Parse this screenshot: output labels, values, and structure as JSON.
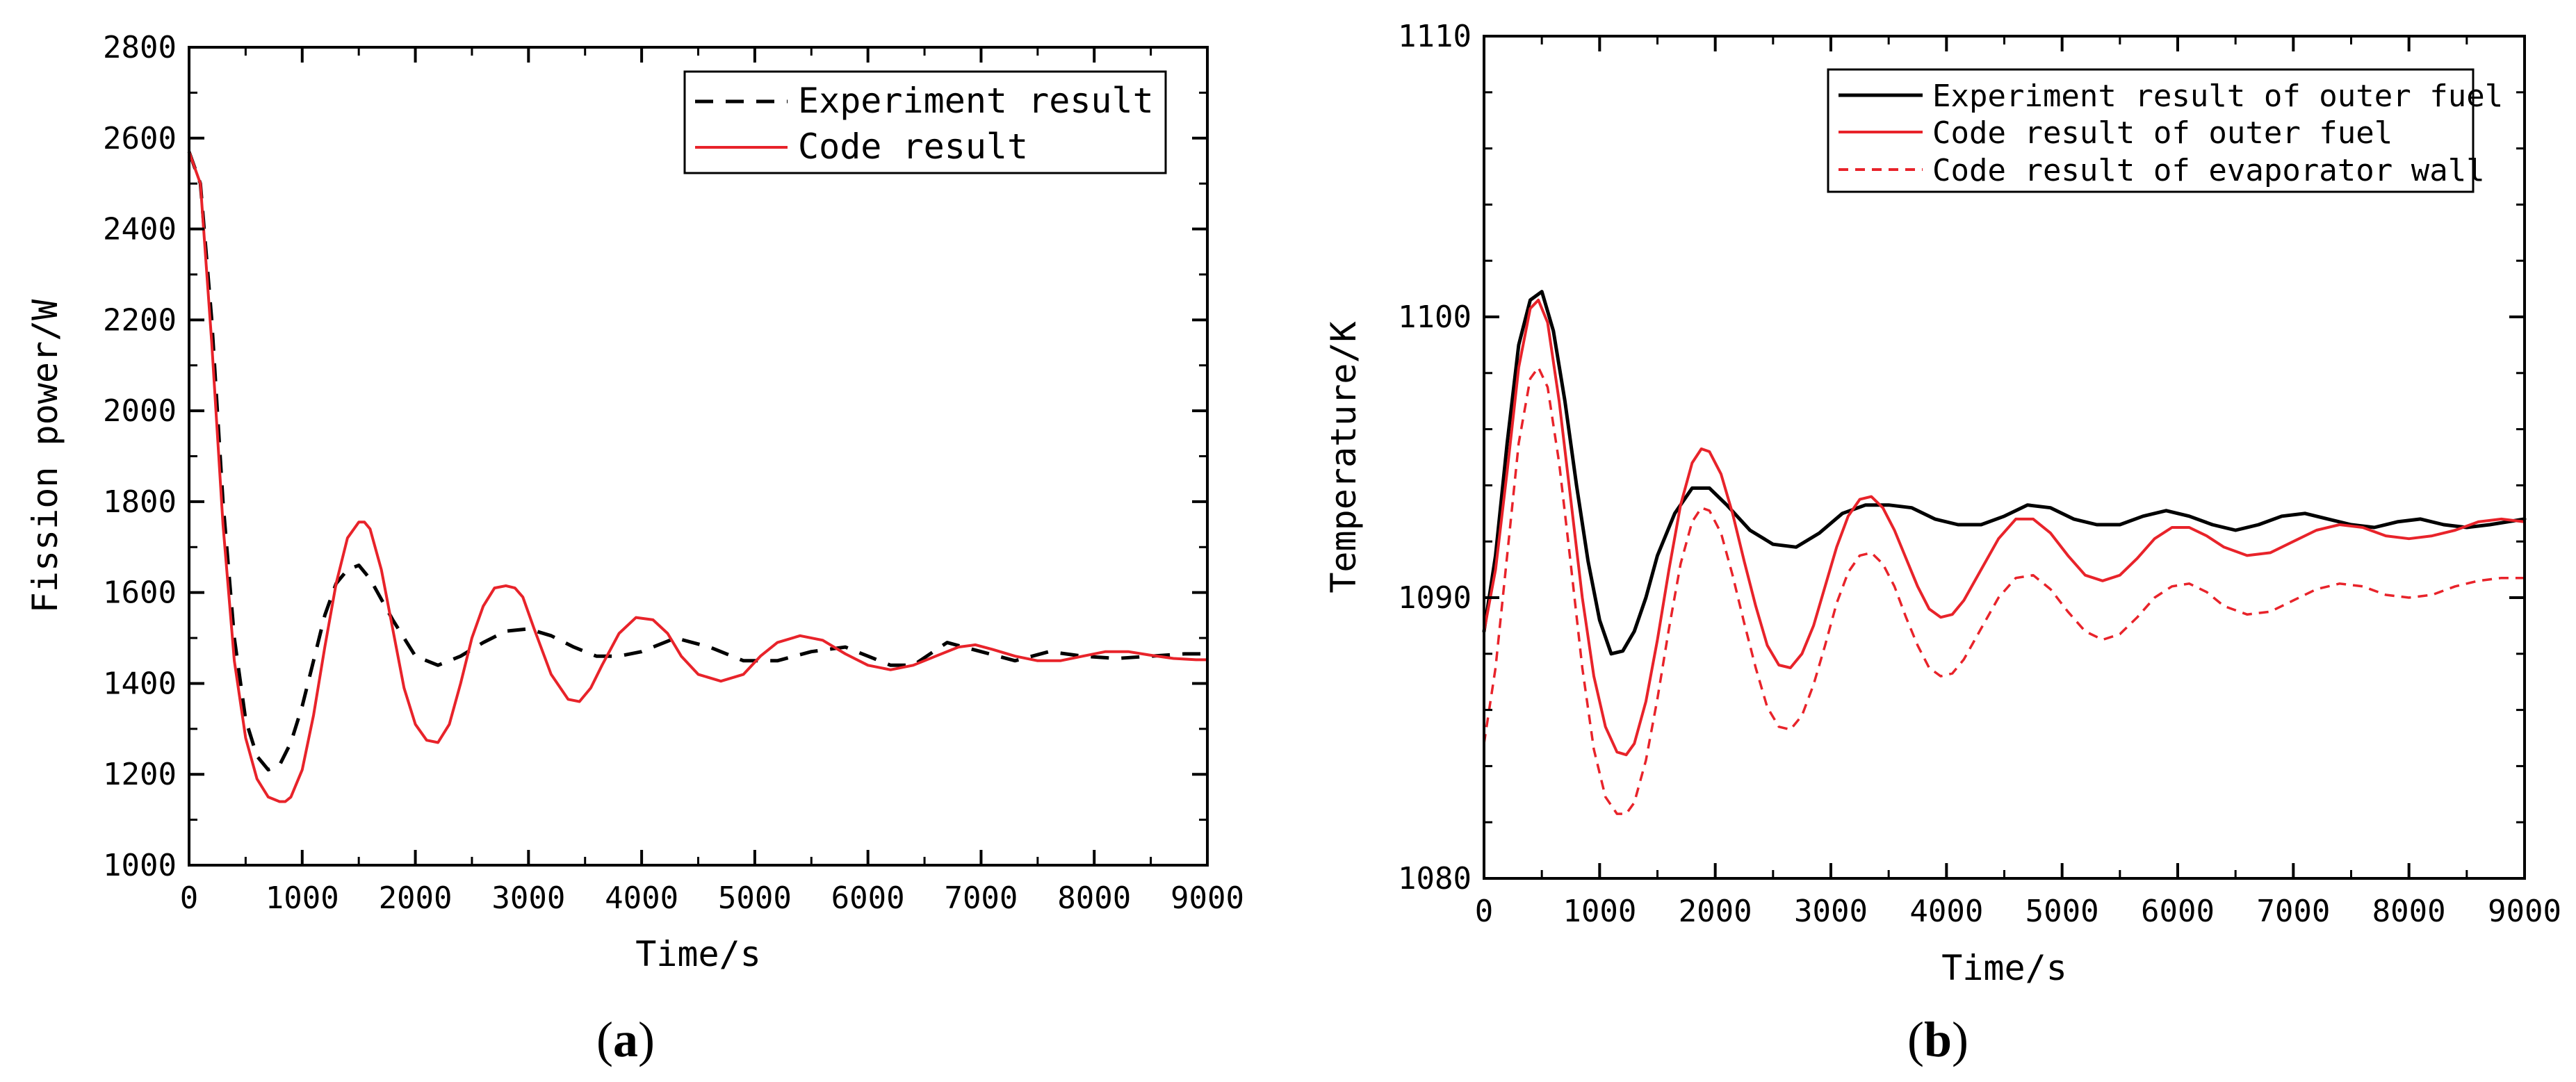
{
  "figure": {
    "panel_a_label": {
      "open": "(",
      "letter": "a",
      "close": ")"
    },
    "panel_b_label": {
      "open": "(",
      "letter": "b",
      "close": ")"
    }
  },
  "chart_data": [
    {
      "id": "a",
      "type": "line",
      "title": "",
      "xlabel": "Time/s",
      "ylabel": "Fission power/W",
      "xlim": [
        0,
        9000
      ],
      "ylim": [
        1000,
        2800
      ],
      "xticks": [
        0,
        1000,
        2000,
        3000,
        4000,
        5000,
        6000,
        7000,
        8000,
        9000
      ],
      "yticks": [
        1000,
        1200,
        1400,
        1600,
        1800,
        2000,
        2200,
        2400,
        2600,
        2800
      ],
      "grid": false,
      "legend_position": "top-right",
      "series": [
        {
          "name": "Experiment result",
          "color": "#000000",
          "dashed": true,
          "x": [
            0,
            100,
            200,
            300,
            400,
            500,
            600,
            700,
            800,
            900,
            1000,
            1100,
            1200,
            1300,
            1400,
            1500,
            1600,
            1800,
            2000,
            2200,
            2400,
            2600,
            2800,
            3000,
            3200,
            3400,
            3600,
            3800,
            4000,
            4300,
            4600,
            4900,
            5200,
            5500,
            5800,
            6000,
            6200,
            6400,
            6700,
            7000,
            7300,
            7600,
            7900,
            8200,
            8500,
            8800,
            9000
          ],
          "y": [
            2570,
            2500,
            2200,
            1800,
            1500,
            1320,
            1240,
            1210,
            1220,
            1270,
            1350,
            1450,
            1550,
            1620,
            1650,
            1660,
            1630,
            1540,
            1460,
            1440,
            1460,
            1490,
            1515,
            1520,
            1505,
            1480,
            1460,
            1460,
            1470,
            1500,
            1480,
            1450,
            1450,
            1470,
            1480,
            1460,
            1440,
            1440,
            1490,
            1470,
            1450,
            1470,
            1460,
            1455,
            1460,
            1465,
            1465
          ]
        },
        {
          "name": "Code result",
          "color": "#e8232a",
          "dashed": false,
          "x": [
            0,
            100,
            200,
            300,
            400,
            500,
            600,
            700,
            800,
            850,
            900,
            1000,
            1100,
            1200,
            1300,
            1400,
            1500,
            1550,
            1600,
            1700,
            1800,
            1900,
            2000,
            2100,
            2200,
            2300,
            2400,
            2500,
            2600,
            2700,
            2800,
            2880,
            2950,
            3050,
            3200,
            3350,
            3450,
            3550,
            3650,
            3800,
            3950,
            4100,
            4230,
            4350,
            4500,
            4700,
            4900,
            5050,
            5200,
            5400,
            5600,
            5800,
            6000,
            6200,
            6400,
            6600,
            6800,
            6950,
            7100,
            7300,
            7500,
            7700,
            7900,
            8100,
            8300,
            8500,
            8700,
            8900,
            9000
          ],
          "y": [
            2570,
            2500,
            2150,
            1750,
            1450,
            1280,
            1190,
            1150,
            1140,
            1140,
            1150,
            1210,
            1330,
            1480,
            1620,
            1720,
            1755,
            1755,
            1740,
            1650,
            1520,
            1390,
            1310,
            1275,
            1270,
            1310,
            1400,
            1500,
            1570,
            1610,
            1615,
            1610,
            1590,
            1520,
            1420,
            1365,
            1360,
            1390,
            1440,
            1510,
            1545,
            1540,
            1510,
            1460,
            1420,
            1405,
            1420,
            1460,
            1490,
            1505,
            1495,
            1465,
            1440,
            1430,
            1440,
            1460,
            1480,
            1485,
            1475,
            1460,
            1450,
            1450,
            1460,
            1470,
            1470,
            1462,
            1455,
            1452,
            1452
          ]
        }
      ]
    },
    {
      "id": "b",
      "type": "line",
      "title": "",
      "xlabel": "Time/s",
      "ylabel": "Temperature/K",
      "xlim": [
        0,
        9000
      ],
      "ylim": [
        1080,
        1110
      ],
      "xticks": [
        0,
        1000,
        2000,
        3000,
        4000,
        5000,
        6000,
        7000,
        8000,
        9000
      ],
      "yticks": [
        1080,
        1090,
        1100,
        1110
      ],
      "grid": false,
      "legend_position": "top-right",
      "series": [
        {
          "name": "Experiment result of outer fuel",
          "color": "#000000",
          "dashed": false,
          "x": [
            0,
            100,
            200,
            300,
            400,
            500,
            600,
            700,
            800,
            900,
            1000,
            1100,
            1200,
            1300,
            1400,
            1500,
            1650,
            1800,
            1950,
            2100,
            2300,
            2500,
            2700,
            2900,
            3100,
            3300,
            3500,
            3700,
            3900,
            4100,
            4300,
            4500,
            4700,
            4900,
            5100,
            5300,
            5500,
            5700,
            5900,
            6100,
            6300,
            6500,
            6700,
            6900,
            7100,
            7300,
            7500,
            7700,
            7900,
            8100,
            8300,
            8500,
            8700,
            9000
          ],
          "y": [
            1088.8,
            1091.5,
            1095.5,
            1099.0,
            1100.6,
            1100.9,
            1099.5,
            1097.0,
            1094.0,
            1091.3,
            1089.2,
            1088.0,
            1088.1,
            1088.8,
            1090.0,
            1091.5,
            1093.0,
            1093.9,
            1093.9,
            1093.3,
            1092.4,
            1091.9,
            1091.8,
            1092.3,
            1093.0,
            1093.3,
            1093.3,
            1093.2,
            1092.8,
            1092.6,
            1092.6,
            1092.9,
            1093.3,
            1093.2,
            1092.8,
            1092.6,
            1092.6,
            1092.9,
            1093.1,
            1092.9,
            1092.6,
            1092.4,
            1092.6,
            1092.9,
            1093.0,
            1092.8,
            1092.6,
            1092.5,
            1092.7,
            1092.8,
            1092.6,
            1092.5,
            1092.6,
            1092.8
          ]
        },
        {
          "name": "Code result of outer fuel",
          "color": "#e8232a",
          "dashed": false,
          "x": [
            0,
            100,
            200,
            300,
            400,
            470,
            550,
            650,
            750,
            850,
            950,
            1050,
            1150,
            1230,
            1300,
            1400,
            1500,
            1600,
            1700,
            1800,
            1880,
            1950,
            2050,
            2150,
            2250,
            2350,
            2450,
            2550,
            2650,
            2750,
            2850,
            2950,
            3050,
            3150,
            3250,
            3350,
            3450,
            3550,
            3650,
            3750,
            3850,
            3950,
            4050,
            4150,
            4300,
            4450,
            4600,
            4750,
            4900,
            5050,
            5200,
            5350,
            5500,
            5650,
            5800,
            5950,
            6100,
            6250,
            6400,
            6600,
            6800,
            7000,
            7200,
            7400,
            7600,
            7800,
            8000,
            8200,
            8400,
            8600,
            8800,
            9000
          ],
          "y": [
            1088.8,
            1091.0,
            1094.5,
            1098.2,
            1100.3,
            1100.6,
            1099.8,
            1097.0,
            1093.5,
            1090.0,
            1087.2,
            1085.4,
            1084.5,
            1084.4,
            1084.8,
            1086.3,
            1088.5,
            1091.0,
            1093.3,
            1094.8,
            1095.3,
            1095.2,
            1094.4,
            1093.0,
            1091.3,
            1089.7,
            1088.3,
            1087.6,
            1087.5,
            1088.0,
            1089.0,
            1090.4,
            1091.8,
            1092.9,
            1093.5,
            1093.6,
            1093.2,
            1092.4,
            1091.4,
            1090.4,
            1089.6,
            1089.3,
            1089.4,
            1089.9,
            1091.0,
            1092.1,
            1092.8,
            1092.8,
            1092.3,
            1091.5,
            1090.8,
            1090.6,
            1090.8,
            1091.4,
            1092.1,
            1092.5,
            1092.5,
            1092.2,
            1091.8,
            1091.5,
            1091.6,
            1092.0,
            1092.4,
            1092.6,
            1092.5,
            1092.2,
            1092.1,
            1092.2,
            1092.4,
            1092.7,
            1092.8,
            1092.7
          ]
        },
        {
          "name": "Code result of evaporator wall",
          "color": "#e8232a",
          "dashed": true,
          "x": [
            0,
            100,
            200,
            300,
            400,
            470,
            550,
            650,
            750,
            850,
            950,
            1050,
            1150,
            1230,
            1300,
            1400,
            1500,
            1600,
            1700,
            1800,
            1880,
            1950,
            2050,
            2150,
            2250,
            2350,
            2450,
            2550,
            2650,
            2750,
            2850,
            2950,
            3050,
            3150,
            3250,
            3350,
            3450,
            3550,
            3650,
            3750,
            3850,
            3950,
            4050,
            4150,
            4300,
            4450,
            4600,
            4750,
            4900,
            5050,
            5200,
            5350,
            5500,
            5650,
            5800,
            5950,
            6100,
            6250,
            6400,
            6600,
            6800,
            7000,
            7200,
            7400,
            7600,
            7800,
            8000,
            8200,
            8400,
            8600,
            8800,
            9000
          ],
          "y": [
            1084.8,
            1087.5,
            1091.5,
            1095.5,
            1097.8,
            1098.2,
            1097.5,
            1094.8,
            1091.2,
            1087.5,
            1084.6,
            1082.9,
            1082.3,
            1082.3,
            1082.7,
            1084.2,
            1086.4,
            1088.9,
            1091.2,
            1092.7,
            1093.2,
            1093.1,
            1092.3,
            1090.8,
            1089.1,
            1087.5,
            1086.1,
            1085.4,
            1085.3,
            1085.8,
            1086.9,
            1088.3,
            1089.8,
            1090.9,
            1091.5,
            1091.6,
            1091.2,
            1090.4,
            1089.3,
            1088.3,
            1087.5,
            1087.2,
            1087.3,
            1087.8,
            1088.9,
            1090.0,
            1090.7,
            1090.8,
            1090.3,
            1089.5,
            1088.8,
            1088.5,
            1088.7,
            1089.3,
            1090.0,
            1090.4,
            1090.5,
            1090.2,
            1089.7,
            1089.4,
            1089.5,
            1089.9,
            1090.3,
            1090.5,
            1090.4,
            1090.1,
            1090.0,
            1090.1,
            1090.4,
            1090.6,
            1090.7,
            1090.7
          ]
        }
      ]
    }
  ]
}
